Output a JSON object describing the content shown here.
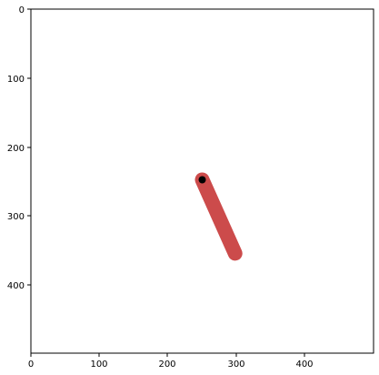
{
  "plot": {
    "x_ticks": [
      "0",
      "100",
      "200",
      "300",
      "400"
    ],
    "y_ticks": [
      "0",
      "100",
      "200",
      "300",
      "400"
    ],
    "x_range": [
      0,
      500
    ],
    "y_range": [
      0,
      500
    ],
    "y_inverted": true
  },
  "scene": {
    "pole": {
      "start": [
        250,
        248
      ],
      "end": [
        298,
        355
      ],
      "color": "#cc4b4b"
    },
    "pivot": {
      "center": [
        250,
        248
      ],
      "color": "#000000"
    }
  },
  "colors": {
    "background": "#ffffff",
    "axes": "#000000"
  }
}
